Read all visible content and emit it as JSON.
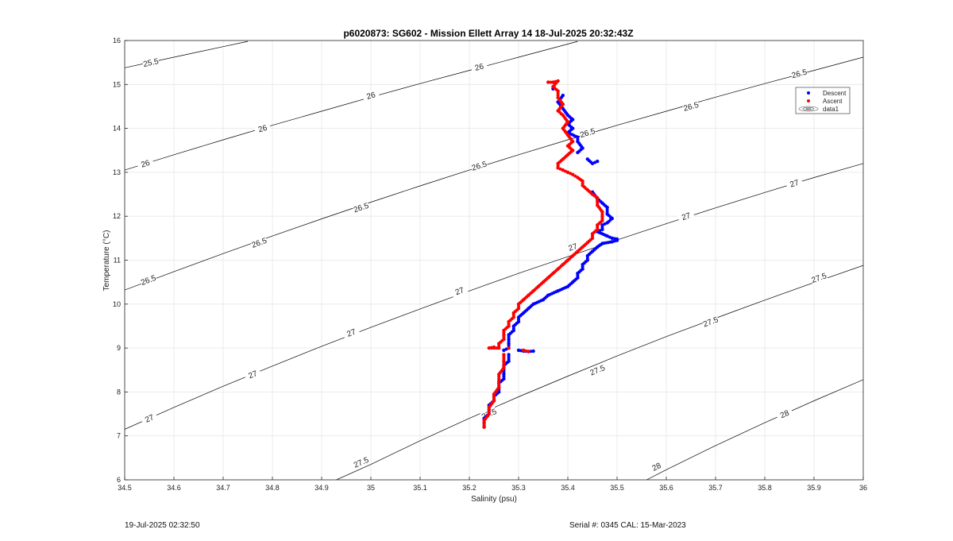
{
  "chart_data": {
    "type": "scatter",
    "title": "p6020873: SG602 - Mission Ellett Array 14 18-Jul-2025 20:32:43Z",
    "xlabel": "Salinity (psu)",
    "ylabel": "Temperature (°C)",
    "xlim": [
      34.5,
      36
    ],
    "ylim": [
      6,
      16
    ],
    "xticks": [
      "34.5",
      "34.6",
      "34.7",
      "34.8",
      "34.9",
      "35",
      "35.1",
      "35.2",
      "35.3",
      "35.4",
      "35.5",
      "35.6",
      "35.7",
      "35.8",
      "35.9",
      "36"
    ],
    "yticks": [
      "6",
      "7",
      "8",
      "9",
      "10",
      "11",
      "12",
      "13",
      "14",
      "15",
      "16"
    ],
    "grid": true,
    "legend_position": "top-right",
    "legend": [
      "Descent",
      "Ascent",
      "data1"
    ],
    "colors": {
      "descent": "#0000ff",
      "ascent": "#ff0000",
      "contour": "#000000",
      "grid": "#e6e6e6"
    },
    "contours": [
      {
        "level": "25.5",
        "points": [
          [
            34.5,
            15.38
          ],
          [
            34.6,
            15.62
          ],
          [
            34.7,
            15.86
          ],
          [
            34.75,
            15.98
          ]
        ],
        "labels": [
          [
            34.553,
            15.5
          ]
        ]
      },
      {
        "level": "26",
        "points": [
          [
            34.5,
            13.05
          ],
          [
            34.6,
            13.4
          ],
          [
            34.7,
            13.74
          ],
          [
            34.8,
            14.07
          ],
          [
            34.9,
            14.39
          ],
          [
            35.0,
            14.71
          ],
          [
            35.1,
            15.02
          ],
          [
            35.2,
            15.32
          ],
          [
            35.3,
            15.62
          ],
          [
            35.42,
            15.98
          ]
        ],
        "labels": [
          [
            34.542,
            13.2
          ],
          [
            34.78,
            14.0
          ],
          [
            35.0,
            14.75
          ],
          [
            35.22,
            15.4
          ]
        ]
      },
      {
        "level": "26.5",
        "points": [
          [
            34.5,
            10.32
          ],
          [
            34.6,
            10.74
          ],
          [
            34.7,
            11.15
          ],
          [
            34.8,
            11.55
          ],
          [
            34.9,
            11.94
          ],
          [
            35.0,
            12.32
          ],
          [
            35.1,
            12.69
          ],
          [
            35.2,
            13.05
          ],
          [
            35.3,
            13.4
          ],
          [
            35.4,
            13.74
          ],
          [
            35.5,
            14.07
          ],
          [
            35.6,
            14.39
          ],
          [
            35.7,
            14.71
          ],
          [
            35.8,
            15.02
          ],
          [
            35.9,
            15.32
          ],
          [
            36.0,
            15.62
          ]
        ],
        "labels": [
          [
            34.548,
            10.55
          ],
          [
            34.773,
            11.4
          ],
          [
            34.98,
            12.2
          ],
          [
            35.22,
            13.15
          ],
          [
            35.44,
            13.9
          ],
          [
            35.65,
            14.5
          ],
          [
            35.87,
            15.25
          ]
        ]
      },
      {
        "level": "27",
        "points": [
          [
            34.5,
            7.15
          ],
          [
            34.6,
            7.65
          ],
          [
            34.7,
            8.13
          ],
          [
            34.8,
            8.59
          ],
          [
            34.9,
            9.04
          ],
          [
            35.0,
            9.47
          ],
          [
            35.1,
            9.89
          ],
          [
            35.2,
            10.3
          ],
          [
            35.3,
            10.7
          ],
          [
            35.4,
            11.08
          ],
          [
            35.5,
            11.46
          ],
          [
            35.6,
            11.83
          ],
          [
            35.7,
            12.19
          ],
          [
            35.8,
            12.54
          ],
          [
            35.9,
            12.88
          ],
          [
            36.0,
            13.2
          ]
        ],
        "labels": [
          [
            34.55,
            7.4
          ],
          [
            34.76,
            8.4
          ],
          [
            34.96,
            9.35
          ],
          [
            35.18,
            10.3
          ],
          [
            35.41,
            11.3
          ],
          [
            35.64,
            12.0
          ],
          [
            35.86,
            12.75
          ]
        ]
      },
      {
        "level": "27.5",
        "points": [
          [
            34.93,
            6.0
          ],
          [
            35.0,
            6.35
          ],
          [
            35.1,
            6.89
          ],
          [
            35.2,
            7.4
          ],
          [
            35.3,
            7.89
          ],
          [
            35.4,
            8.36
          ],
          [
            35.5,
            8.82
          ],
          [
            35.6,
            9.26
          ],
          [
            35.7,
            9.68
          ],
          [
            35.8,
            10.09
          ],
          [
            35.9,
            10.49
          ],
          [
            36.0,
            10.88
          ]
        ],
        "labels": [
          [
            34.98,
            6.4
          ],
          [
            35.24,
            7.5
          ],
          [
            35.46,
            8.5
          ],
          [
            35.69,
            9.6
          ],
          [
            35.91,
            10.6
          ]
        ]
      },
      {
        "level": "28",
        "points": [
          [
            35.56,
            6.0
          ],
          [
            35.6,
            6.23
          ],
          [
            35.7,
            6.78
          ],
          [
            35.8,
            7.3
          ],
          [
            35.9,
            7.8
          ],
          [
            36.0,
            8.28
          ]
        ],
        "labels": [
          [
            35.58,
            6.3
          ],
          [
            35.84,
            7.5
          ]
        ]
      }
    ],
    "series": [
      {
        "name": "Descent",
        "points": [
          [
            35.37,
            14.9
          ],
          [
            35.39,
            14.75
          ],
          [
            35.38,
            14.6
          ],
          [
            35.39,
            14.45
          ],
          [
            35.4,
            14.3
          ],
          [
            35.41,
            14.2
          ],
          [
            35.4,
            14.1
          ],
          [
            35.41,
            14.0
          ],
          [
            35.4,
            13.9
          ],
          [
            35.42,
            13.8
          ],
          [
            35.42,
            13.7
          ],
          [
            35.43,
            13.55
          ],
          [
            35.42,
            13.45
          ],
          [
            35.44,
            13.3
          ],
          [
            35.45,
            13.2
          ],
          [
            35.46,
            13.25
          ],
          [
            35.45,
            12.55
          ],
          [
            35.46,
            12.4
          ],
          [
            35.47,
            12.3
          ],
          [
            35.48,
            12.2
          ],
          [
            35.48,
            12.05
          ],
          [
            35.49,
            11.95
          ],
          [
            35.48,
            11.85
          ],
          [
            35.47,
            11.8
          ],
          [
            35.47,
            11.7
          ],
          [
            35.46,
            11.65
          ],
          [
            35.48,
            11.55
          ],
          [
            35.49,
            11.5
          ],
          [
            35.5,
            11.48
          ],
          [
            35.5,
            11.45
          ],
          [
            35.49,
            11.42
          ],
          [
            35.47,
            11.38
          ],
          [
            35.46,
            11.3
          ],
          [
            35.45,
            11.2
          ],
          [
            35.44,
            11.1
          ],
          [
            35.44,
            11.0
          ],
          [
            35.43,
            10.9
          ],
          [
            35.43,
            10.8
          ],
          [
            35.42,
            10.7
          ],
          [
            35.42,
            10.6
          ],
          [
            35.41,
            10.5
          ],
          [
            35.4,
            10.4
          ],
          [
            35.38,
            10.3
          ],
          [
            35.36,
            10.2
          ],
          [
            35.35,
            10.1
          ],
          [
            35.33,
            10.0
          ],
          [
            35.32,
            9.9
          ],
          [
            35.31,
            9.8
          ],
          [
            35.3,
            9.7
          ],
          [
            35.3,
            9.6
          ],
          [
            35.29,
            9.5
          ],
          [
            35.29,
            9.4
          ],
          [
            35.28,
            9.3
          ],
          [
            35.28,
            9.2
          ],
          [
            35.28,
            9.1
          ],
          [
            35.28,
            9.0
          ],
          [
            35.27,
            8.95
          ],
          [
            35.3,
            8.95
          ],
          [
            35.31,
            8.93
          ],
          [
            35.32,
            8.92
          ],
          [
            35.33,
            8.93
          ],
          [
            35.28,
            8.85
          ],
          [
            35.28,
            8.7
          ],
          [
            35.27,
            8.6
          ],
          [
            35.27,
            8.5
          ],
          [
            35.27,
            8.4
          ],
          [
            35.27,
            8.3
          ],
          [
            35.26,
            8.2
          ],
          [
            35.26,
            8.1
          ],
          [
            35.26,
            8.0
          ],
          [
            35.25,
            7.9
          ],
          [
            35.25,
            7.8
          ],
          [
            35.24,
            7.7
          ],
          [
            35.24,
            7.6
          ],
          [
            35.24,
            7.5
          ],
          [
            35.23,
            7.4
          ],
          [
            35.23,
            7.3
          ],
          [
            35.23,
            7.2
          ]
        ]
      },
      {
        "name": "Ascent",
        "points": [
          [
            35.36,
            15.05
          ],
          [
            35.37,
            15.05
          ],
          [
            35.38,
            15.08
          ],
          [
            35.37,
            14.95
          ],
          [
            35.38,
            14.85
          ],
          [
            35.38,
            14.7
          ],
          [
            35.39,
            14.55
          ],
          [
            35.38,
            14.4
          ],
          [
            35.39,
            14.3
          ],
          [
            35.4,
            14.15
          ],
          [
            35.39,
            14.0
          ],
          [
            35.4,
            13.85
          ],
          [
            35.41,
            13.7
          ],
          [
            35.4,
            13.6
          ],
          [
            35.41,
            13.5
          ],
          [
            35.4,
            13.4
          ],
          [
            35.39,
            13.3
          ],
          [
            35.38,
            13.2
          ],
          [
            35.38,
            13.1
          ],
          [
            35.39,
            13.05
          ],
          [
            35.4,
            13.0
          ],
          [
            35.41,
            12.95
          ],
          [
            35.42,
            12.88
          ],
          [
            35.43,
            12.8
          ],
          [
            35.43,
            12.7
          ],
          [
            35.44,
            12.6
          ],
          [
            35.45,
            12.5
          ],
          [
            35.46,
            12.42
          ],
          [
            35.46,
            12.35
          ],
          [
            35.46,
            12.25
          ],
          [
            35.47,
            12.1
          ],
          [
            35.47,
            12.0
          ],
          [
            35.47,
            11.9
          ],
          [
            35.46,
            11.8
          ],
          [
            35.46,
            11.7
          ],
          [
            35.45,
            11.6
          ],
          [
            35.45,
            11.5
          ],
          [
            35.44,
            11.4
          ],
          [
            35.43,
            11.3
          ],
          [
            35.42,
            11.2
          ],
          [
            35.41,
            11.1
          ],
          [
            35.4,
            11.0
          ],
          [
            35.39,
            10.9
          ],
          [
            35.38,
            10.8
          ],
          [
            35.37,
            10.7
          ],
          [
            35.36,
            10.6
          ],
          [
            35.35,
            10.5
          ],
          [
            35.34,
            10.4
          ],
          [
            35.33,
            10.3
          ],
          [
            35.32,
            10.2
          ],
          [
            35.31,
            10.1
          ],
          [
            35.3,
            10.0
          ],
          [
            35.3,
            9.9
          ],
          [
            35.29,
            9.8
          ],
          [
            35.29,
            9.7
          ],
          [
            35.28,
            9.6
          ],
          [
            35.28,
            9.5
          ],
          [
            35.27,
            9.4
          ],
          [
            35.27,
            9.3
          ],
          [
            35.27,
            9.2
          ],
          [
            35.26,
            9.1
          ],
          [
            35.26,
            9.0
          ],
          [
            35.24,
            9.0
          ],
          [
            35.25,
            9.02
          ],
          [
            35.28,
            9.0
          ],
          [
            35.31,
            8.95
          ],
          [
            35.32,
            8.92
          ],
          [
            35.27,
            8.85
          ],
          [
            35.27,
            8.7
          ],
          [
            35.27,
            8.55
          ],
          [
            35.26,
            8.4
          ],
          [
            35.26,
            8.25
          ],
          [
            35.26,
            8.1
          ],
          [
            35.25,
            7.95
          ],
          [
            35.25,
            7.8
          ],
          [
            35.24,
            7.65
          ],
          [
            35.24,
            7.5
          ],
          [
            35.23,
            7.35
          ],
          [
            35.23,
            7.2
          ]
        ]
      }
    ]
  },
  "footer": {
    "timestamp": "19-Jul-2025 02:32:50",
    "serial": "Serial #: 0345  CAL: 15-Mar-2023"
  }
}
